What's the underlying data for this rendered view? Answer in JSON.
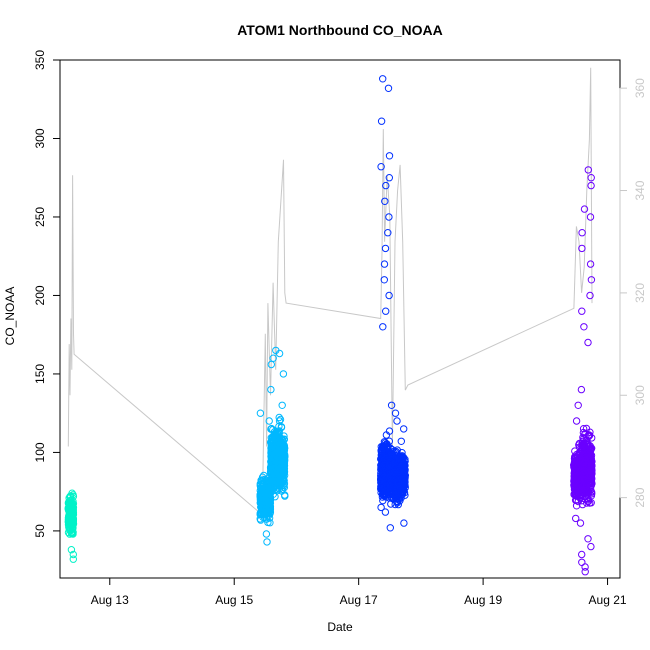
{
  "chart_data": {
    "type": "scatter",
    "title": "ATOM1 Northbound CO_NOAA",
    "xlabel": "Date",
    "ylabel": "CO_NOAA",
    "x_axis": {
      "type": "date",
      "range": [
        "2016-08-12T04:48",
        "2016-08-21T04:48"
      ],
      "ticks": [
        "2016-08-13",
        "2016-08-15",
        "2016-08-17",
        "2016-08-19",
        "2016-08-21"
      ],
      "tick_labels": [
        "Aug 13",
        "Aug 15",
        "Aug 17",
        "Aug 19",
        "Aug 21"
      ]
    },
    "y_axis": {
      "range": [
        20,
        350
      ],
      "ticks": [
        50,
        100,
        150,
        200,
        250,
        300,
        350
      ]
    },
    "y2_axis": {
      "range": [
        264.3,
        365.5
      ],
      "ticks": [
        280,
        300,
        320,
        340,
        360
      ],
      "color": "#c8c8c8"
    },
    "grid": false,
    "legend": "none",
    "series": [
      {
        "color": "#00f2c8",
        "co_clusters": [
          {
            "start": "2016-08-12T08:00",
            "end": "2016-08-12T10:00",
            "base": 60,
            "spread": 18,
            "outliers": [
              32,
              35,
              38,
              73,
              74
            ]
          }
        ]
      },
      {
        "color": "#00b8ff",
        "co_clusters": [
          {
            "start": "2016-08-15T10:00",
            "end": "2016-08-15T14:00",
            "base": 70,
            "spread": 20,
            "outliers": [
              43,
              48,
              120,
              125
            ]
          },
          {
            "start": "2016-08-15T14:00",
            "end": "2016-08-15T19:30",
            "base": 95,
            "spread": 32,
            "outliers": [
              130,
              140,
              150,
              156,
              160,
              163,
              165
            ]
          }
        ]
      },
      {
        "color": "#0030ff",
        "co_clusters": [
          {
            "start": "2016-08-17T08:30",
            "end": "2016-08-17T12:00",
            "base": 90,
            "spread": 28,
            "outliers": [
              62,
              65,
              180,
              190,
              200,
              210,
              220,
              230,
              240,
              250,
              260,
              270,
              275,
              282,
              289,
              311,
              332,
              338
            ]
          },
          {
            "start": "2016-08-17T12:00",
            "end": "2016-08-17T18:00",
            "base": 85,
            "spread": 25,
            "outliers": [
              52,
              55,
              115,
              120,
              125,
              130
            ]
          }
        ]
      },
      {
        "color": "#6a00ff",
        "co_clusters": [
          {
            "start": "2016-08-20T11:00",
            "end": "2016-08-20T14:00",
            "base": 85,
            "spread": 25,
            "outliers": [
              55,
              58,
              120,
              130,
              140
            ]
          },
          {
            "start": "2016-08-20T14:00",
            "end": "2016-08-20T18:00",
            "base": 90,
            "spread": 35,
            "outliers": [
              24,
              27,
              30,
              35,
              40,
              45,
              170,
              180,
              190,
              200,
              210,
              220,
              230,
              240,
              250,
              255,
              270,
              275,
              280
            ]
          }
        ]
      }
    ],
    "y2_series": {
      "color": "#c8c8c8",
      "points": [
        [
          "2016-08-12T08:00",
          290
        ],
        [
          "2016-08-12T08:20",
          310
        ],
        [
          "2016-08-12T08:40",
          300
        ],
        [
          "2016-08-12T09:00",
          315
        ],
        [
          "2016-08-12T09:20",
          305
        ],
        [
          "2016-08-12T09:40",
          343
        ],
        [
          "2016-08-12T10:00",
          312
        ],
        [
          "2016-08-12T10:15",
          308
        ],
        [
          "2016-08-15T10:00",
          277
        ],
        [
          "2016-08-15T11:00",
          282
        ],
        [
          "2016-08-15T12:00",
          312
        ],
        [
          "2016-08-15T12:30",
          290
        ],
        [
          "2016-08-15T13:00",
          318
        ],
        [
          "2016-08-15T14:00",
          300
        ],
        [
          "2016-08-15T15:00",
          322
        ],
        [
          "2016-08-15T16:00",
          305
        ],
        [
          "2016-08-15T17:00",
          330
        ],
        [
          "2016-08-15T18:00",
          338
        ],
        [
          "2016-08-15T19:00",
          346
        ],
        [
          "2016-08-15T19:30",
          320
        ],
        [
          "2016-08-15T20:00",
          318
        ],
        [
          "2016-08-17T08:30",
          315
        ],
        [
          "2016-08-17T09:00",
          328
        ],
        [
          "2016-08-17T09:30",
          352
        ],
        [
          "2016-08-17T10:00",
          330
        ],
        [
          "2016-08-17T11:00",
          343
        ],
        [
          "2016-08-17T12:00",
          335
        ],
        [
          "2016-08-17T13:00",
          290
        ],
        [
          "2016-08-17T14:00",
          330
        ],
        [
          "2016-08-17T15:00",
          340
        ],
        [
          "2016-08-17T16:00",
          345
        ],
        [
          "2016-08-17T17:00",
          330
        ],
        [
          "2016-08-17T18:00",
          301
        ],
        [
          "2016-08-17T19:00",
          302
        ],
        [
          "2016-08-20T11:00",
          317
        ],
        [
          "2016-08-20T12:00",
          333
        ],
        [
          "2016-08-20T13:00",
          330
        ],
        [
          "2016-08-20T14:00",
          320
        ],
        [
          "2016-08-20T15:00",
          325
        ],
        [
          "2016-08-20T16:00",
          340
        ],
        [
          "2016-08-20T17:00",
          350
        ],
        [
          "2016-08-20T17:30",
          364
        ],
        [
          "2016-08-20T18:00",
          318
        ]
      ]
    }
  }
}
